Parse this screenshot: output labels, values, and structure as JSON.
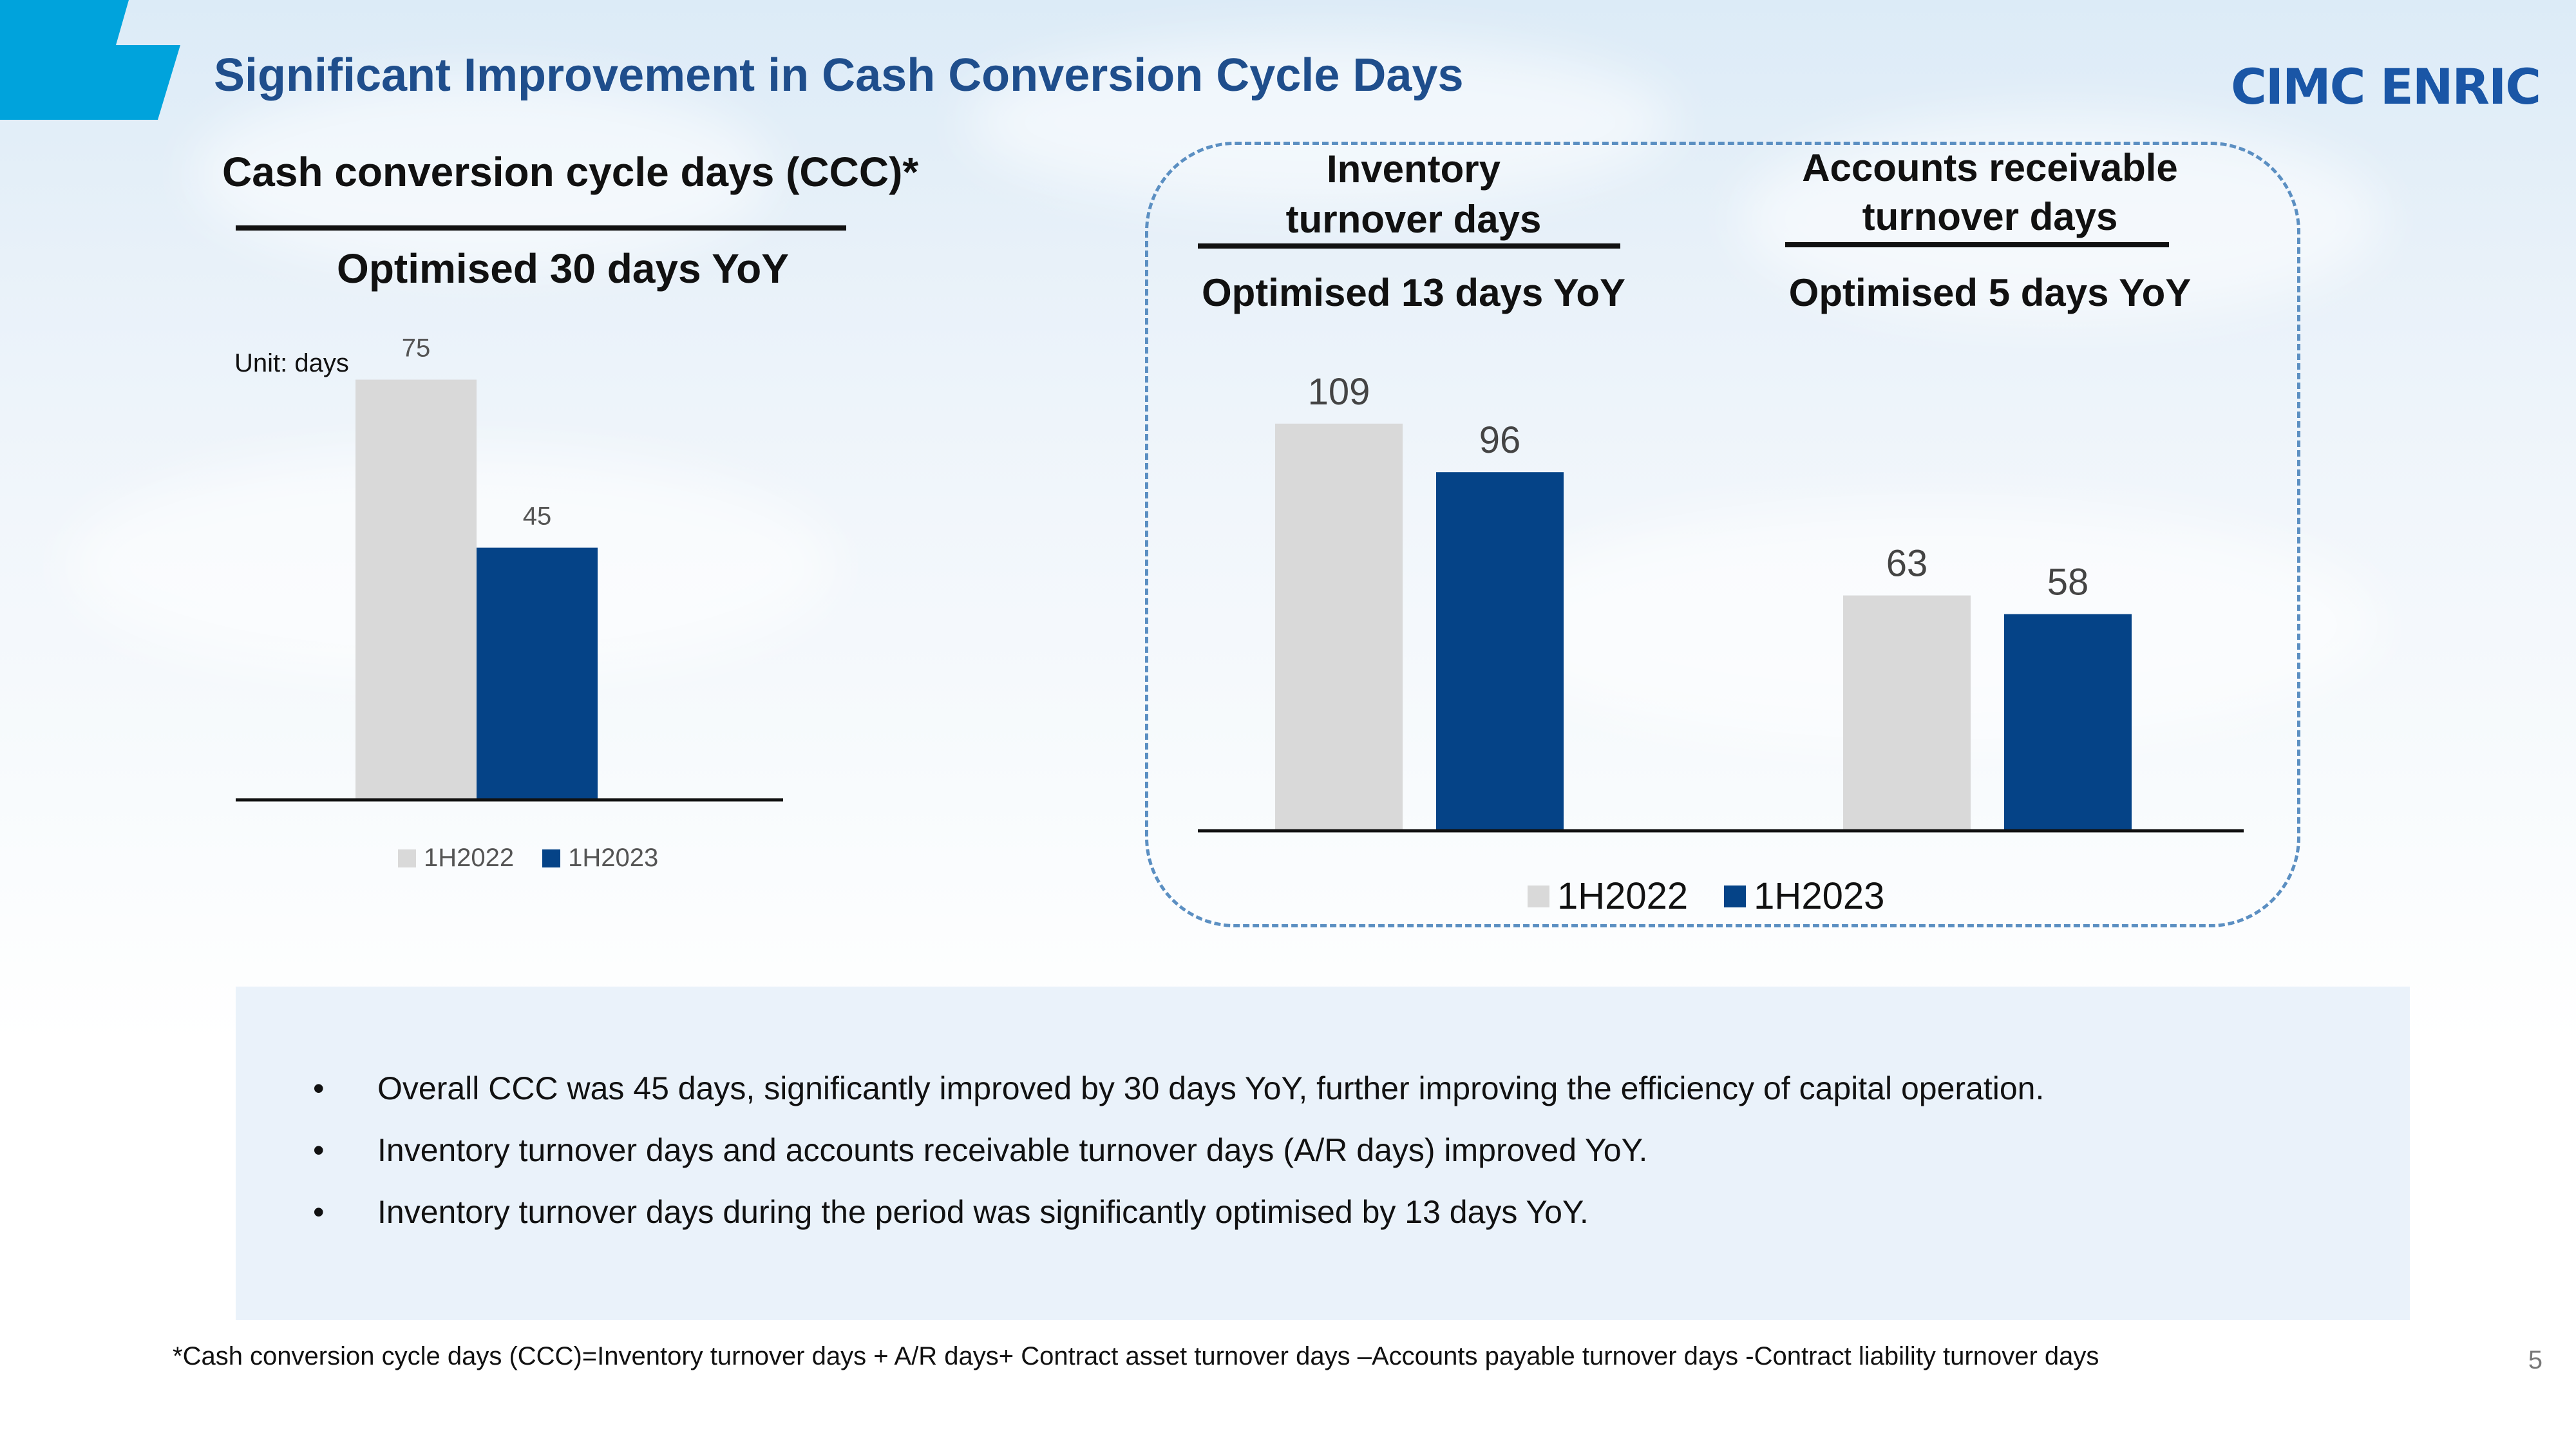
{
  "slide": {
    "title": "Significant Improvement in Cash Conversion Cycle Days",
    "logo": "CIMC ENRIC",
    "page_number": "5"
  },
  "ccc_panel": {
    "heading": "Cash conversion cycle days (CCC)*",
    "subheading": "Optimised 30 days YoY",
    "unit": "Unit: days"
  },
  "turnover_panel": {
    "inventory_heading_line1": "Inventory",
    "inventory_heading_line2": "turnover days",
    "inventory_sub": "Optimised 13  days YoY",
    "ar_heading_line1": "Accounts receivable",
    "ar_heading_line2": "turnover days",
    "ar_sub": "Optimised 5 days YoY"
  },
  "chart_data": [
    {
      "type": "bar",
      "categories": [
        ""
      ],
      "series": [
        {
          "name": "1H2022",
          "values": [
            75
          ],
          "color": "#d9d9d9"
        },
        {
          "name": "1H2023",
          "values": [
            45
          ],
          "color": "#054387"
        }
      ],
      "ylim": [
        0,
        80
      ],
      "legend": "bottom"
    },
    {
      "type": "bar",
      "categories": [
        "Inventory turnover days",
        "Accounts receivable turnover days"
      ],
      "series": [
        {
          "name": "1H2022",
          "values": [
            109,
            63
          ],
          "color": "#d9d9d9"
        },
        {
          "name": "1H2023",
          "values": [
            96,
            58
          ],
          "color": "#054387"
        }
      ],
      "ylim": [
        0,
        120
      ],
      "legend": "bottom"
    }
  ],
  "bullets": [
    "Overall CCC was 45 days, significantly improved by 30 days YoY, further improving the efficiency of capital operation.",
    "Inventory turnover days and accounts receivable turnover days (A/R days) improved YoY.",
    "Inventory turnover days during the period was significantly optimised by 13 days YoY."
  ],
  "bullet_symbol": "•",
  "footnote": "*Cash conversion cycle days (CCC)=Inventory turnover days + A/R days+ Contract asset turnover days –Accounts payable turnover days -Contract liability turnover days"
}
